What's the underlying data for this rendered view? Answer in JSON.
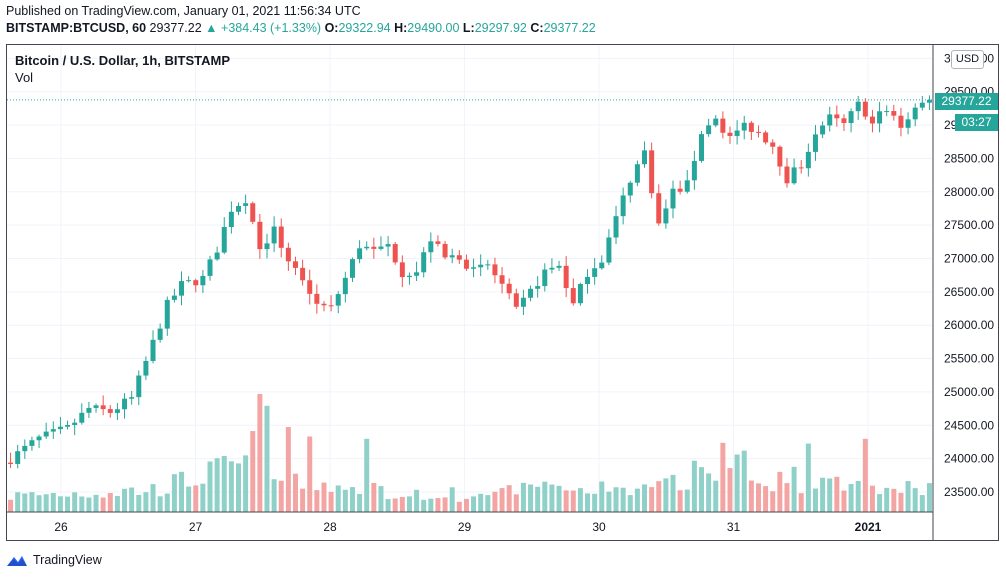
{
  "header": {
    "published": "Published on TradingView.com, January 01, 2021 11:56:34 UTC",
    "symbol": "BITSTAMP:BTCUSD, 60",
    "last": "29377.22",
    "change": "▲ +384.43 (+1.33%)",
    "o_label": "O:",
    "o_value": "29322.94",
    "h_label": "H:",
    "h_value": "29490.00",
    "l_label": "L:",
    "l_value": "29297.92",
    "c_label": "C:",
    "c_value": "29377.22"
  },
  "legend": {
    "title": "Bitcoin / U.S. Dollar, 1h, BITSTAMP",
    "volume": "Vol"
  },
  "axis": {
    "currency_button": "USD",
    "last_price_tag": "29377.22",
    "countdown": "03:27"
  },
  "brand": {
    "name": "TradingView",
    "logo_icon": "tradingview-logo-icon"
  },
  "colors": {
    "up": "#26a69a",
    "down": "#ef5350",
    "up_vol": "#8fd0c8",
    "down_vol": "#f3a5a3",
    "grid": "#f0f3fa"
  },
  "chart_data": {
    "type": "candlestick",
    "interval": "1h",
    "y_ticks": [
      "23500.00",
      "24000.00",
      "24500.00",
      "25000.00",
      "25500.00",
      "26000.00",
      "26500.00",
      "27000.00",
      "27500.00",
      "28000.00",
      "28500.00",
      "29000.00",
      "29500.00",
      "30000.00"
    ],
    "ylim": [
      23200,
      30200
    ],
    "x_ticks": [
      "26",
      "27",
      "28",
      "29",
      "30",
      "31",
      "2021"
    ],
    "grid": true,
    "last_price": 29377.22,
    "close_path": [
      [
        0,
        24000
      ],
      [
        4,
        24300
      ],
      [
        8,
        24450
      ],
      [
        11,
        24750
      ],
      [
        14,
        24700
      ],
      [
        17,
        24900
      ],
      [
        19,
        25450
      ],
      [
        22,
        26300
      ],
      [
        24,
        26600
      ],
      [
        27,
        26700
      ],
      [
        29,
        27150
      ],
      [
        31,
        27750
      ],
      [
        33,
        27900
      ],
      [
        35,
        27200
      ],
      [
        37,
        27400
      ],
      [
        39,
        27000
      ],
      [
        41,
        26700
      ],
      [
        43,
        26300
      ],
      [
        45,
        26250
      ],
      [
        47,
        26700
      ],
      [
        49,
        27200
      ],
      [
        51,
        27100
      ],
      [
        53,
        27200
      ],
      [
        55,
        26800
      ],
      [
        57,
        26800
      ],
      [
        59,
        27300
      ],
      [
        61,
        27000
      ],
      [
        63,
        27050
      ],
      [
        65,
        26800
      ],
      [
        67,
        26900
      ],
      [
        69,
        26600
      ],
      [
        71,
        26200
      ],
      [
        73,
        26500
      ],
      [
        75,
        26800
      ],
      [
        77,
        26900
      ],
      [
        79,
        26300
      ],
      [
        81,
        26800
      ],
      [
        83,
        27000
      ],
      [
        85,
        27600
      ],
      [
        87,
        28200
      ],
      [
        89,
        28600
      ],
      [
        91,
        27500
      ],
      [
        93,
        28000
      ],
      [
        95,
        28100
      ],
      [
        97,
        28900
      ],
      [
        99,
        29100
      ],
      [
        101,
        28800
      ],
      [
        103,
        29000
      ],
      [
        105,
        28900
      ],
      [
        107,
        28700
      ],
      [
        109,
        28200
      ],
      [
        111,
        28400
      ],
      [
        113,
        28900
      ],
      [
        115,
        29100
      ],
      [
        117,
        29000
      ],
      [
        119,
        29300
      ],
      [
        121,
        29100
      ],
      [
        123,
        29200
      ],
      [
        125,
        29000
      ],
      [
        127,
        29250
      ],
      [
        129,
        29377.22
      ]
    ],
    "volume_note": "relative volume bars beneath candles",
    "volume_profile": [
      [
        0,
        0.16
      ],
      [
        20,
        0.22
      ],
      [
        33,
        0.48
      ],
      [
        35,
        0.72
      ],
      [
        37,
        0.35
      ],
      [
        50,
        0.22
      ],
      [
        66,
        0.16
      ],
      [
        73,
        0.22
      ],
      [
        80,
        0.26
      ],
      [
        90,
        0.2
      ],
      [
        97,
        0.4
      ],
      [
        100,
        0.55
      ],
      [
        104,
        0.28
      ],
      [
        110,
        0.32
      ],
      [
        114,
        0.26
      ],
      [
        120,
        0.24
      ],
      [
        129,
        0.22
      ]
    ],
    "volume_highlights": [
      [
        35,
        1.0
      ],
      [
        36,
        0.9
      ],
      [
        39,
        0.72
      ],
      [
        42,
        0.64
      ],
      [
        50,
        0.62
      ],
      [
        97,
        0.38
      ],
      [
        120,
        0.62
      ],
      [
        103,
        0.52
      ],
      [
        112,
        0.58
      ]
    ]
  }
}
